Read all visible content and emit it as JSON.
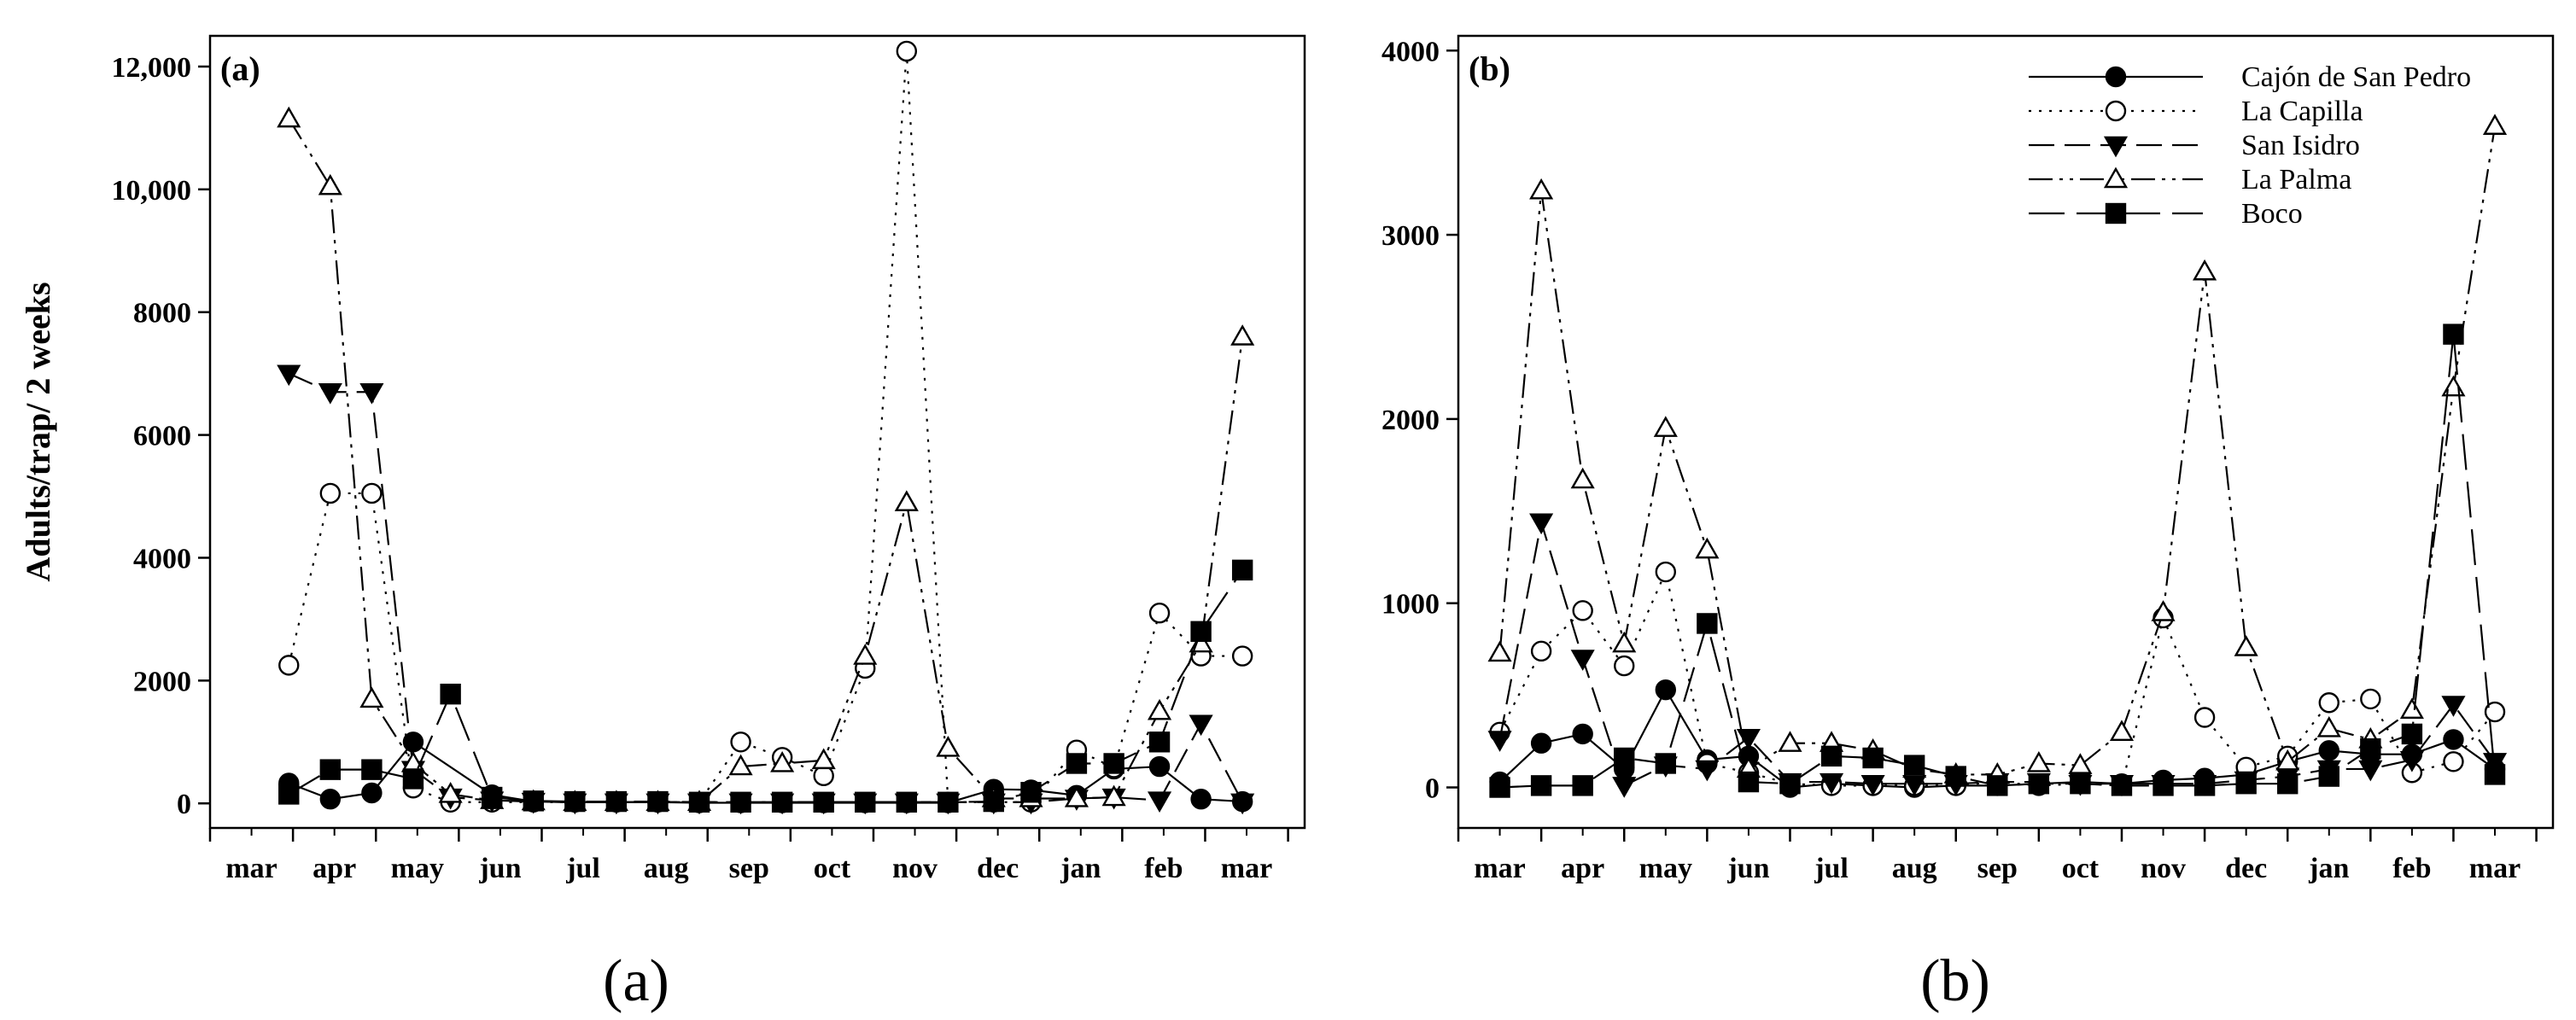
{
  "captions": [
    "(a)",
    "(b)"
  ],
  "chart_data": [
    {
      "type": "line",
      "panel_label": "(a)",
      "ylabel": "Adults/trap/ 2 weeks",
      "xlabel": "",
      "x_tick_labels": [
        "mar",
        "apr",
        "may",
        "jun",
        "jul",
        "aug",
        "sep",
        "oct",
        "nov",
        "dec",
        "jan",
        "feb",
        "mar"
      ],
      "xlim": [
        0,
        13.2
      ],
      "ylim": [
        -400,
        12500
      ],
      "y_ticks": [
        0,
        2000,
        4000,
        6000,
        8000,
        10000,
        12000
      ],
      "y_tick_labels": [
        "0",
        "2000",
        "4000",
        "6000",
        "8000",
        "10,000",
        "12,000"
      ],
      "grid": false,
      "legend": false,
      "series": [
        {
          "name": "Cajón de San Pedro",
          "x": [
            0.95,
            1.45,
            1.95,
            2.45,
            3.4,
            3.9,
            4.4,
            4.9,
            5.4,
            5.9,
            6.4,
            6.9,
            7.4,
            7.9,
            8.4,
            8.9,
            9.45,
            9.9,
            10.45,
            10.9,
            11.45,
            11.95,
            12.45
          ],
          "values": [
            330,
            70,
            170,
            1000,
            140,
            30,
            20,
            20,
            20,
            10,
            10,
            10,
            10,
            10,
            10,
            10,
            230,
            220,
            130,
            560,
            600,
            70,
            30
          ]
        },
        {
          "name": "La Capilla",
          "x": [
            0.95,
            1.45,
            1.95,
            2.45,
            2.9,
            3.4,
            3.9,
            4.4,
            4.9,
            5.4,
            5.9,
            6.4,
            6.9,
            7.4,
            7.9,
            8.4,
            8.9,
            9.45,
            9.9,
            10.45,
            10.9,
            11.45,
            11.95,
            12.45
          ],
          "values": [
            2250,
            5050,
            5050,
            250,
            20,
            20,
            20,
            20,
            20,
            20,
            20,
            1000,
            750,
            450,
            2200,
            12250,
            20,
            20,
            20,
            870,
            580,
            3100,
            2400,
            2400
          ]
        },
        {
          "name": "San Isidro",
          "x": [
            0.95,
            1.45,
            1.95,
            2.45,
            2.9,
            3.4,
            3.9,
            4.4,
            4.9,
            5.4,
            5.9,
            6.4,
            6.9,
            7.4,
            7.9,
            8.4,
            8.9,
            9.45,
            9.9,
            10.45,
            10.9,
            11.45,
            11.95,
            12.45
          ],
          "values": [
            7000,
            6700,
            6700,
            550,
            100,
            50,
            30,
            20,
            20,
            20,
            20,
            20,
            20,
            20,
            20,
            20,
            20,
            20,
            20,
            80,
            100,
            50,
            1300,
            20
          ]
        },
        {
          "name": "La Palma",
          "x": [
            0.95,
            1.45,
            1.95,
            2.45,
            2.9,
            3.4,
            3.9,
            4.4,
            4.9,
            5.4,
            5.9,
            6.4,
            6.9,
            7.4,
            7.9,
            8.4,
            8.9,
            9.45,
            9.9,
            10.45,
            10.9,
            11.45,
            11.95,
            12.45
          ],
          "values": [
            11150,
            10050,
            1700,
            650,
            150,
            50,
            30,
            20,
            20,
            20,
            20,
            600,
            650,
            700,
            2400,
            4900,
            900,
            80,
            80,
            80,
            100,
            1500,
            2600,
            7600
          ]
        },
        {
          "name": "Boco",
          "x": [
            0.95,
            1.45,
            1.95,
            2.45,
            2.9,
            3.4,
            3.9,
            4.4,
            4.9,
            5.4,
            5.9,
            6.4,
            6.9,
            7.4,
            7.9,
            8.4,
            8.9,
            9.45,
            9.9,
            10.45,
            10.9,
            11.45,
            11.95,
            12.45
          ],
          "values": [
            150,
            550,
            550,
            400,
            1780,
            100,
            40,
            30,
            30,
            30,
            20,
            20,
            20,
            20,
            20,
            20,
            20,
            30,
            180,
            650,
            650,
            1000,
            2800,
            3800
          ]
        }
      ]
    },
    {
      "type": "line",
      "panel_label": "(b)",
      "ylabel": "",
      "xlabel": "",
      "x_tick_labels": [
        "mar",
        "apr",
        "may",
        "jun",
        "jul",
        "aug",
        "sep",
        "oct",
        "nov",
        "dec",
        "jan",
        "feb",
        "mar"
      ],
      "xlim": [
        0,
        13.2
      ],
      "ylim": [
        -220,
        4080
      ],
      "y_ticks": [
        0,
        1000,
        2000,
        3000,
        4000
      ],
      "y_tick_labels": [
        "0",
        "1000",
        "2000",
        "3000",
        "4000"
      ],
      "grid": false,
      "legend": true,
      "legend_placement": "top-right",
      "series": [
        {
          "name": "Cajón de San Pedro",
          "x": [
            0.5,
            1.0,
            1.5,
            2.0,
            2.5,
            3.0,
            3.5,
            4.0,
            4.5,
            5.0,
            5.5,
            6.0,
            6.5,
            7.0,
            7.5,
            8.0,
            8.5,
            9.0,
            9.5,
            10.0,
            10.5,
            11.0,
            11.5,
            12.0,
            12.5
          ],
          "values": [
            30,
            240,
            290,
            100,
            530,
            150,
            170,
            0,
            20,
            10,
            0,
            10,
            10,
            20,
            30,
            20,
            40,
            50,
            70,
            140,
            200,
            180,
            180,
            260,
            100
          ]
        },
        {
          "name": "La Capilla",
          "x": [
            0.5,
            1.0,
            1.5,
            2.0,
            2.5,
            3.0,
            3.5,
            4.0,
            4.5,
            5.0,
            5.5,
            6.0,
            6.5,
            7.0,
            7.5,
            8.0,
            8.5,
            9.0,
            9.5,
            10.0,
            10.5,
            11.0,
            11.5,
            12.0,
            12.5
          ],
          "values": [
            300,
            740,
            960,
            660,
            1170,
            130,
            80,
            20,
            10,
            10,
            10,
            10,
            30,
            10,
            20,
            10,
            920,
            380,
            110,
            170,
            460,
            480,
            80,
            140,
            410
          ]
        },
        {
          "name": "San Isidro",
          "x": [
            0.5,
            1.0,
            1.5,
            2.0,
            2.5,
            3.0,
            3.5,
            4.0,
            4.5,
            5.0,
            5.5,
            6.0,
            6.5,
            7.0,
            7.5,
            8.0,
            8.5,
            9.0,
            9.5,
            10.0,
            10.5,
            11.0,
            11.5,
            12.0,
            12.5
          ],
          "values": [
            260,
            1440,
            700,
            10,
            120,
            100,
            270,
            30,
            30,
            20,
            20,
            20,
            30,
            30,
            20,
            20,
            20,
            20,
            40,
            60,
            100,
            100,
            150,
            450,
            140
          ]
        },
        {
          "name": "La Palma",
          "x": [
            0.5,
            1.0,
            1.5,
            2.0,
            2.5,
            3.0,
            3.5,
            4.0,
            4.5,
            5.0,
            5.5,
            6.0,
            6.5,
            7.0,
            7.5,
            8.0,
            8.5,
            9.0,
            9.5,
            10.0,
            10.5,
            11.0,
            11.5,
            12.0,
            12.5
          ],
          "values": [
            730,
            3240,
            1670,
            780,
            1950,
            1290,
            100,
            240,
            240,
            200,
            100,
            70,
            70,
            130,
            120,
            300,
            950,
            2800,
            760,
            140,
            320,
            260,
            420,
            2170,
            3590
          ]
        },
        {
          "name": "Boco",
          "x": [
            0.5,
            1.0,
            1.5,
            2.0,
            2.5,
            3.0,
            3.5,
            4.0,
            4.5,
            5.0,
            5.5,
            6.0,
            6.5,
            7.0,
            7.5,
            8.0,
            8.5,
            9.0,
            9.5,
            10.0,
            10.5,
            11.0,
            11.5,
            12.0,
            12.5
          ],
          "values": [
            0,
            10,
            10,
            160,
            130,
            890,
            30,
            20,
            170,
            160,
            120,
            60,
            10,
            20,
            20,
            10,
            10,
            10,
            20,
            20,
            60,
            210,
            290,
            2460,
            70
          ]
        }
      ]
    }
  ]
}
